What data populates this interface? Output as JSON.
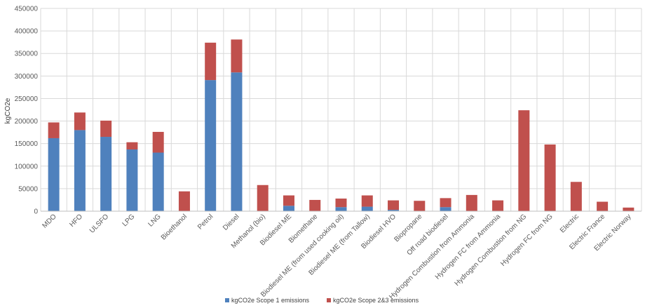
{
  "chart_data": {
    "type": "bar",
    "stacked": true,
    "title": "",
    "xlabel": "",
    "ylabel": "kgCO2e",
    "ylim": [
      0,
      450000
    ],
    "yticks": [
      0,
      50000,
      100000,
      150000,
      200000,
      250000,
      300000,
      350000,
      400000,
      450000
    ],
    "ytick_labels": [
      "0",
      "50000",
      "100000",
      "150000",
      "200000",
      "250000",
      "300000",
      "350000",
      "400000",
      "450000"
    ],
    "grid": true,
    "legend": "bottom",
    "categories": [
      "MDO",
      "HFO",
      "ULSFO",
      "LPG",
      "LNG",
      "Bioethanol",
      "Petrol",
      "Diesel",
      "Methanol (bio)",
      "Biodiesel ME",
      "Biomethane",
      "Biodiesel ME (from used cooking oil)",
      "Biodiesel ME (from Tallow)",
      "Biodiesel HVO",
      "Biopropane",
      "Off road biodiesel",
      "Hydrogen Combustion from Ammonia",
      "Hydrogen FC from Ammonia",
      "Hydrogen Combustion from NG",
      "Hydrogen FC from NG",
      "Electric",
      "Electric France",
      "Electric Norway"
    ],
    "series": [
      {
        "name": "kgCO2e Scope 1 emissions",
        "color": "#4f81bd",
        "values": [
          162000,
          180000,
          165000,
          137000,
          130000,
          0,
          291000,
          308000,
          0,
          12000,
          0,
          9000,
          10000,
          3000,
          0,
          9000,
          0,
          0,
          0,
          0,
          0,
          0,
          0
        ]
      },
      {
        "name": "kgCO2e Scope 2&3 emissions",
        "color": "#c0504d",
        "values": [
          35000,
          39000,
          36000,
          16000,
          46000,
          44000,
          83000,
          73000,
          58000,
          23000,
          25000,
          19000,
          25000,
          21000,
          23000,
          20000,
          36000,
          24000,
          224000,
          148000,
          65000,
          21000,
          8000
        ]
      }
    ]
  }
}
